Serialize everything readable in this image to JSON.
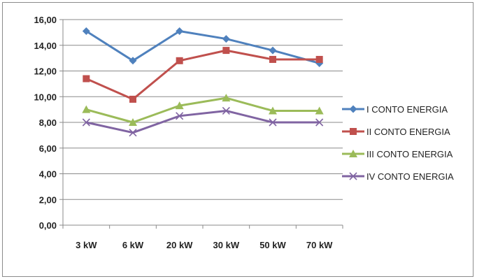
{
  "chart_data": {
    "type": "line",
    "title": "",
    "xlabel": "",
    "ylabel": "",
    "categories": [
      "3 kW",
      "6 kW",
      "20 kW",
      "30 kW",
      "50 kW",
      "70 kW"
    ],
    "ylim": [
      0,
      16
    ],
    "ytick_labels": [
      "0,00",
      "2,00",
      "4,00",
      "6,00",
      "8,00",
      "10,00",
      "12,00",
      "14,00",
      "16,00"
    ],
    "grid": "horizontal",
    "legend_position": "right",
    "series": [
      {
        "name": "I CONTO ENERGIA",
        "color": "#4f81bd",
        "marker": "diamond",
        "values": [
          15.1,
          12.8,
          15.1,
          14.5,
          13.6,
          12.6
        ]
      },
      {
        "name": "II CONTO ENERGIA",
        "color": "#c0504d",
        "marker": "square",
        "values": [
          11.4,
          9.8,
          12.8,
          13.6,
          12.9,
          12.9
        ]
      },
      {
        "name": "III CONTO ENERGIA",
        "color": "#9bbb59",
        "marker": "triangle",
        "values": [
          9.0,
          8.0,
          9.3,
          9.9,
          8.9,
          8.9
        ]
      },
      {
        "name": "IV CONTO ENERGIA",
        "color": "#8064a2",
        "marker": "x",
        "values": [
          8.0,
          7.2,
          8.5,
          8.9,
          8.0,
          8.0
        ]
      }
    ]
  }
}
